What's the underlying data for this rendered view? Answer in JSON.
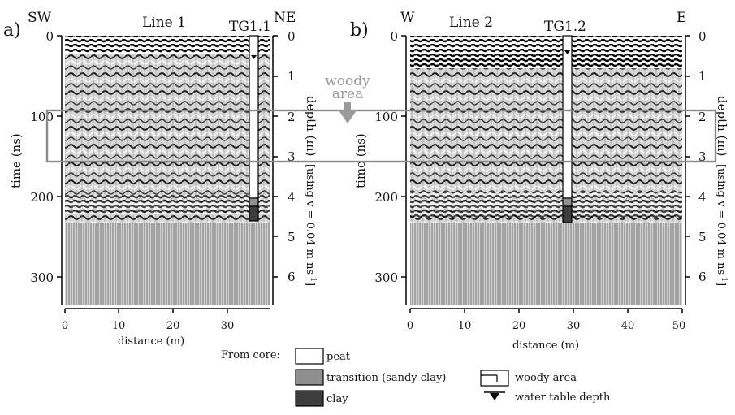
{
  "panels": [
    {
      "letter": "a)",
      "title": "Line 1",
      "left_dir": "SW",
      "right_dir": "NE",
      "core": "TG1.1",
      "time_label": "time (ns)",
      "time_ticks": [
        "0",
        "100",
        "200",
        "300"
      ],
      "depth_ticks": [
        "0",
        "1",
        "2",
        "3",
        "4",
        "5",
        "6"
      ],
      "distance_ticks": [
        "0",
        "10",
        "20",
        "30"
      ],
      "distance_label": "distance (m)",
      "depth_label": "depth (m)",
      "velocity_note": "[using v = 0.04 m ns",
      "velocity_sup": "-1",
      "velocity_close": "]"
    },
    {
      "letter": "b)",
      "title": "Line 2",
      "left_dir": "W",
      "right_dir": "E",
      "core": "TG1.2",
      "time_label": "time (ns)",
      "time_ticks": [
        "0",
        "100",
        "200",
        "300"
      ],
      "depth_ticks": [
        "0",
        "1",
        "2",
        "3",
        "4",
        "5",
        "6"
      ],
      "distance_ticks": [
        "0",
        "10",
        "20",
        "30",
        "40",
        "50"
      ],
      "distance_label": "distance (m)",
      "depth_label": "depth (m)",
      "velocity_note": "[using v = 0.04 m ns",
      "velocity_sup": "-1",
      "velocity_close": "]"
    }
  ],
  "annotation": {
    "line1": "woody",
    "line2": "area"
  },
  "legend": {
    "heading": "From core:",
    "items": [
      {
        "label": "peat",
        "color": "#ffffff"
      },
      {
        "label": "transition (sandy clay)",
        "color": "#8f8f8f"
      },
      {
        "label": "clay",
        "color": "#3d3d3d"
      }
    ],
    "symbols": [
      {
        "label": "woody area"
      },
      {
        "label": "water table depth"
      }
    ]
  },
  "colors": {
    "woody_box": "#8a8a8a",
    "arrow": "#9a9a9a"
  }
}
